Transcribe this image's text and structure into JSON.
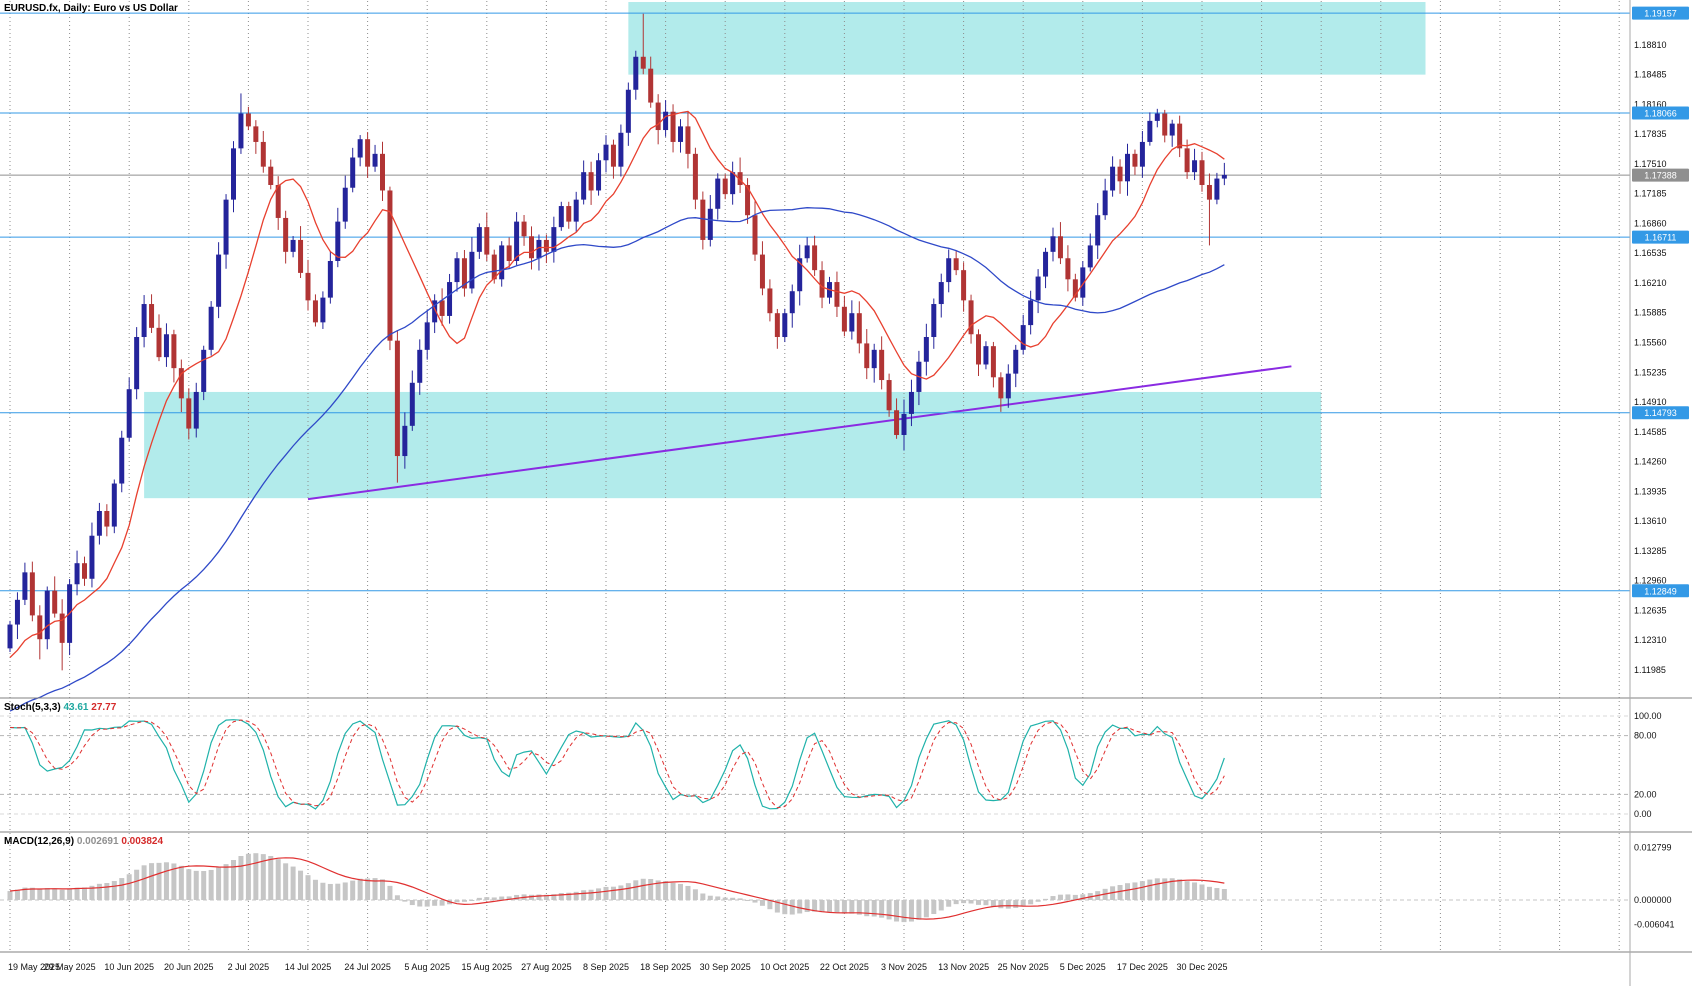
{
  "window": {
    "title": "EURUSD.fx, Daily:  Euro vs US Dollar"
  },
  "indicators": {
    "stoch": {
      "name": "Stoch(5,3,3)",
      "value_main": "43.61",
      "value_signal": "27.77",
      "ticks": [
        "100.00",
        "80.00",
        "20.00",
        "0.00"
      ]
    },
    "macd": {
      "name": "MACD(12,26,9)",
      "value_main": "0.002691",
      "value_signal": "0.003824",
      "ticks": [
        "0.012799",
        "0.000000",
        "-0.006041"
      ]
    }
  },
  "axes": {
    "price_ticks": [
      "1.18810",
      "1.18485",
      "1.18160",
      "1.17835",
      "1.17510",
      "1.17185",
      "1.16860",
      "1.16535",
      "1.16210",
      "1.15885",
      "1.15560",
      "1.15235",
      "1.14910",
      "1.14585",
      "1.14260",
      "1.13935",
      "1.13610",
      "1.13285",
      "1.12960",
      "1.12635",
      "1.12310",
      "1.11985"
    ],
    "price_tags": [
      {
        "label": "1.19157",
        "price": 1.19157,
        "type": "level"
      },
      {
        "label": "1.18066",
        "price": 1.18066,
        "type": "level"
      },
      {
        "label": "1.17388",
        "price": 1.17388,
        "type": "current"
      },
      {
        "label": "1.16711",
        "price": 1.16711,
        "type": "level"
      },
      {
        "label": "1.14793",
        "price": 1.14793,
        "type": "level"
      },
      {
        "label": "1.12849",
        "price": 1.12849,
        "type": "level"
      }
    ],
    "dates": [
      "19 May 2025",
      "29 May 2025",
      "10 Jun 2025",
      "20 Jun 2025",
      "2 Jul 2025",
      "14 Jul 2025",
      "24 Jul 2025",
      "5 Aug 2025",
      "15 Aug 2025",
      "27 Aug 2025",
      "8 Sep 2025",
      "18 Sep 2025",
      "30 Sep 2025",
      "10 Oct 2025",
      "22 Oct 2025",
      "3 Nov 2025",
      "13 Nov 2025",
      "25 Nov 2025",
      "5 Dec 2025",
      "17 Dec 2025",
      "30 Dec 2025"
    ]
  },
  "chart_data": {
    "type": "candlestick",
    "symbol": "EURUSD.fx",
    "timeframe": "Daily",
    "title": "EURUSD.fx, Daily:  Euro vs US Dollar",
    "price_range": {
      "top": 1.193,
      "bottom": 1.11678
    },
    "first_open": 1.1222,
    "closes": [
      1.1248,
      1.1275,
      1.1305,
      1.1258,
      1.1232,
      1.1285,
      1.126,
      1.1228,
      1.1292,
      1.1315,
      1.1298,
      1.1345,
      1.1372,
      1.1355,
      1.1402,
      1.1452,
      1.1505,
      1.1562,
      1.1598,
      1.1572,
      1.154,
      1.1565,
      1.1528,
      1.1495,
      1.1462,
      1.1502,
      1.1548,
      1.1595,
      1.1652,
      1.1712,
      1.1768,
      1.1806,
      1.1792,
      1.1775,
      1.1748,
      1.1728,
      1.1692,
      1.1655,
      1.1668,
      1.1632,
      1.1602,
      1.1578,
      1.1605,
      1.1645,
      1.1688,
      1.1725,
      1.1758,
      1.1778,
      1.1748,
      1.1762,
      1.1722,
      1.1558,
      1.1432,
      1.1465,
      1.1512,
      1.1548,
      1.1578,
      1.1602,
      1.1585,
      1.1622,
      1.1648,
      1.1615,
      1.1655,
      1.1682,
      1.1652,
      1.1625,
      1.1662,
      1.1645,
      1.1688,
      1.1672,
      1.1648,
      1.1668,
      1.1655,
      1.1682,
      1.1705,
      1.1688,
      1.1712,
      1.1742,
      1.1722,
      1.1755,
      1.1772,
      1.1748,
      1.1785,
      1.1832,
      1.1868,
      1.1855,
      1.1818,
      1.1788,
      1.1808,
      1.1775,
      1.1792,
      1.1762,
      1.1712,
      1.1668,
      1.1702,
      1.1735,
      1.1718,
      1.1742,
      1.1728,
      1.1695,
      1.1652,
      1.1615,
      1.1588,
      1.1562,
      1.1588,
      1.1612,
      1.1648,
      1.1662,
      1.1635,
      1.1605,
      1.1622,
      1.1595,
      1.1568,
      1.1588,
      1.1555,
      1.1528,
      1.1548,
      1.1515,
      1.1482,
      1.1455,
      1.1478,
      1.1502,
      1.1535,
      1.1562,
      1.1598,
      1.1622,
      1.1648,
      1.1635,
      1.1602,
      1.1565,
      1.1532,
      1.1552,
      1.1518,
      1.1495,
      1.1522,
      1.1548,
      1.1575,
      1.1602,
      1.1628,
      1.1655,
      1.1672,
      1.1648,
      1.1625,
      1.1605,
      1.1638,
      1.1662,
      1.1695,
      1.1722,
      1.1748,
      1.1732,
      1.1762,
      1.1748,
      1.1775,
      1.1798,
      1.1806,
      1.1782,
      1.1795,
      1.1768,
      1.1742,
      1.1755,
      1.1728,
      1.1712,
      1.1735,
      1.1739
    ],
    "wick_overrides": {
      "4": {
        "low": 1.121
      },
      "7": {
        "low": 1.1198
      },
      "31": {
        "high": 1.1828
      },
      "52": {
        "low": 1.1403
      },
      "85": {
        "high": 1.1915
      },
      "120": {
        "low": 1.1438
      },
      "161": {
        "low": 1.1662
      }
    },
    "moving_averages": [
      {
        "period": 10,
        "color": "#e8402f"
      },
      {
        "period": 48,
        "color": "#2f49c8"
      }
    ],
    "hlines": [
      1.19157,
      1.18066,
      1.16711,
      1.14793,
      1.12849
    ],
    "current_price": 1.17388,
    "zones": [
      {
        "name": "supply-zone",
        "i1": 83,
        "i2": 190,
        "p1": 1.18485,
        "p2": 1.19278
      },
      {
        "name": "demand-zone",
        "i1": 18,
        "i2": 176,
        "p1": 1.1386,
        "p2": 1.1502
      }
    ],
    "trendline": {
      "i1": 40,
      "p1": 1.1385,
      "i2": 172,
      "p2": 1.153
    },
    "stoch": {
      "k": 5,
      "slowing": 3,
      "d": 3,
      "levels": [
        80,
        20
      ]
    },
    "macd": {
      "fast": 12,
      "slow": 26,
      "signal": 9,
      "axis_top": 0.012799,
      "axis_bottom": -0.006041
    },
    "colors": {
      "bull": "#24249b",
      "bear": "#b03434",
      "ma_fast": "#e8402f",
      "ma_slow": "#2f49c8",
      "hline": "#3399e6",
      "current": "#8f8f8f",
      "zone": "#b2ebeb",
      "trendline": "#8a2be2",
      "grid": "#8c8c8c",
      "divider": "#808080",
      "stoch_main": "#20b2aa",
      "stoch_signal": "#e03030",
      "macd_hist": "#c6c6c6",
      "macd_signal": "#e03030",
      "tick_text": "#111111",
      "tag_text": "#ffffff"
    }
  }
}
